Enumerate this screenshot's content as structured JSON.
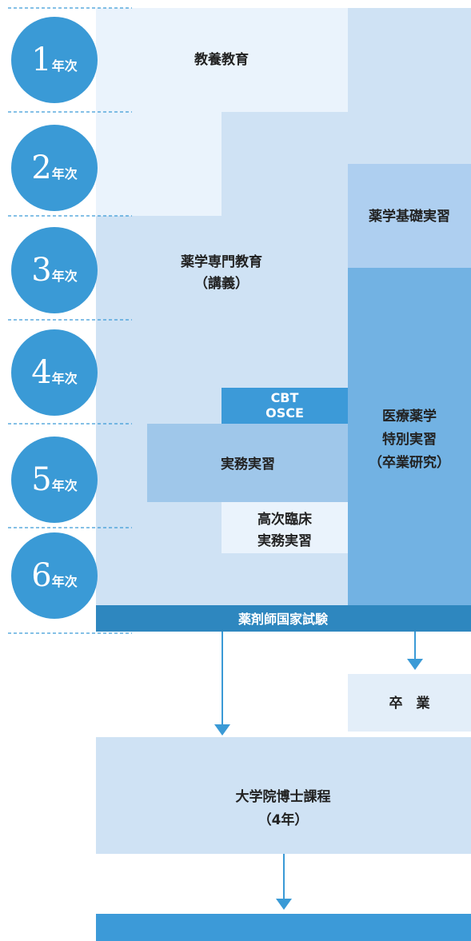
{
  "years": [
    {
      "number": "1",
      "unit": "年次"
    },
    {
      "number": "2",
      "unit": "年次"
    },
    {
      "number": "3",
      "unit": "年次"
    },
    {
      "number": "4",
      "unit": "年次"
    },
    {
      "number": "5",
      "unit": "年次"
    },
    {
      "number": "6",
      "unit": "年次"
    }
  ],
  "blocks": {
    "general": "教養教育",
    "specialized": [
      "薬学専門教育",
      "（講義）"
    ],
    "basic_practice": "薬学基礎実習",
    "clinical_special": [
      "医療薬学",
      "特別実習",
      "（卒業研究）"
    ],
    "cbt_osce": [
      "CBT",
      "OSCE"
    ],
    "practical": "実務実習",
    "advanced": [
      "高次臨床",
      "実務実習"
    ],
    "exam": "薬剤師国家試験",
    "graduation": "卒　業",
    "graduate_school": [
      "大学院博士課程",
      "（4年）"
    ]
  }
}
